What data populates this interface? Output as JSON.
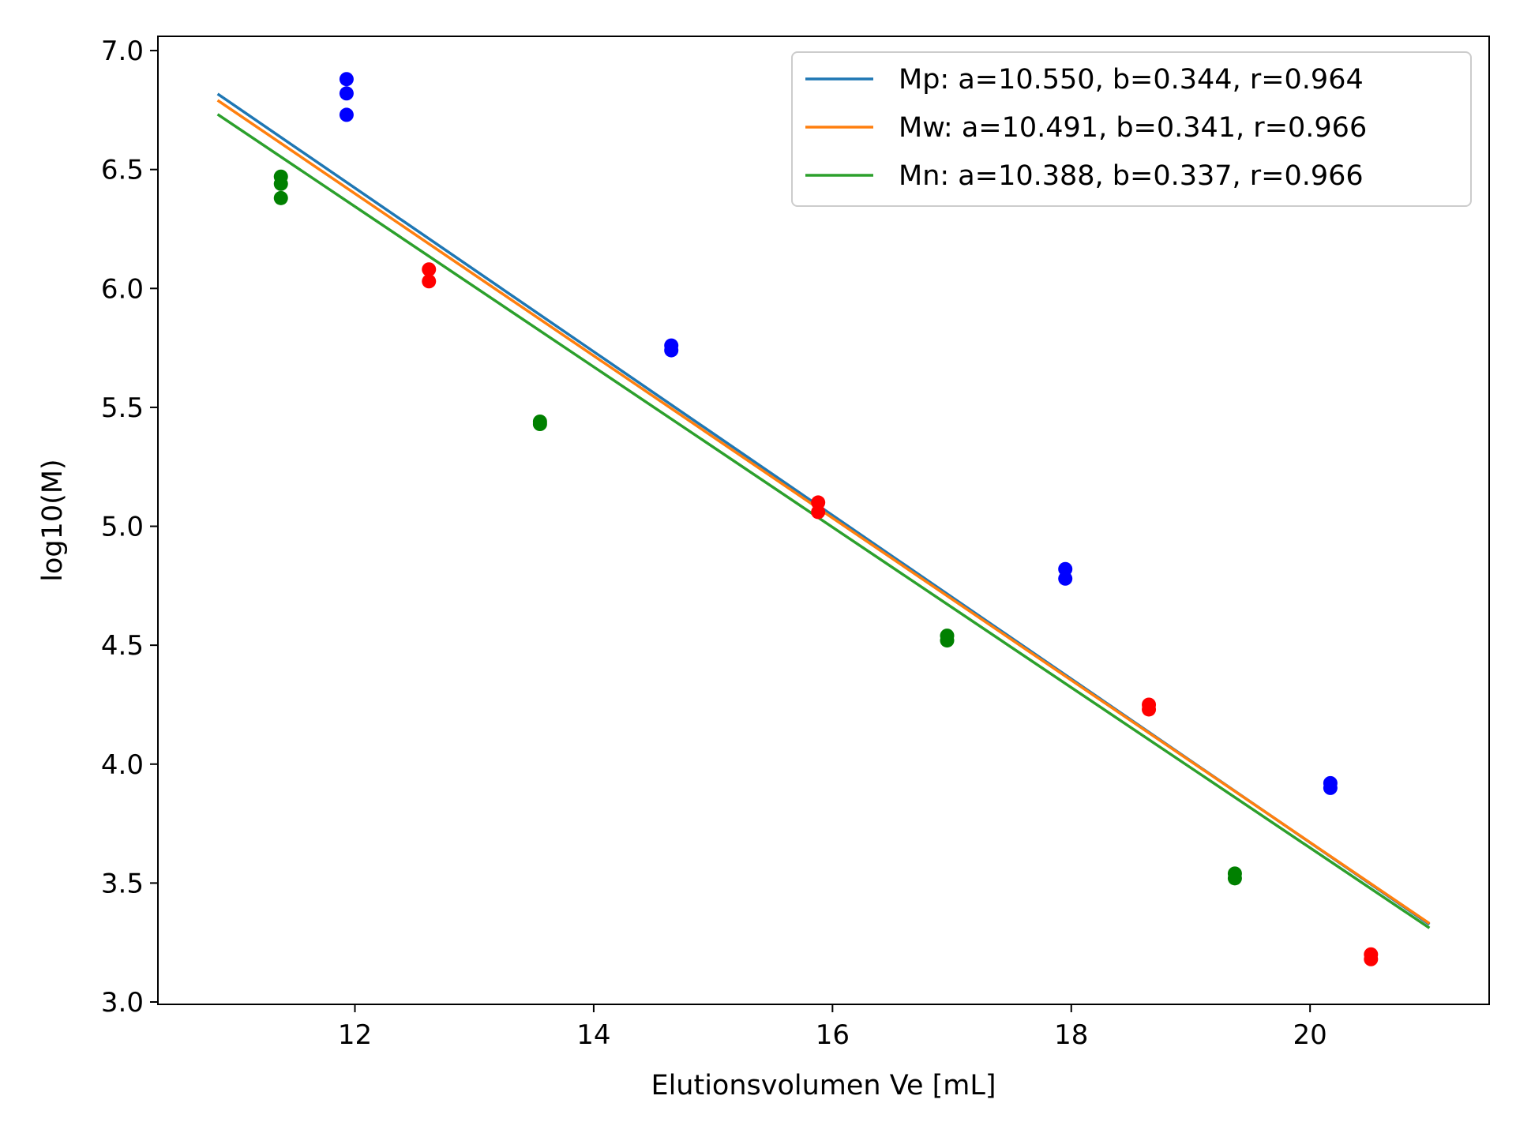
{
  "chart_data": {
    "type": "scatter",
    "title": "",
    "xlabel": "Elutionsvolumen Ve [mL]",
    "ylabel": "log10(M)",
    "xlim": [
      10.35,
      21.5
    ],
    "ylim": [
      2.99,
      7.06
    ],
    "xticks": [
      12,
      14,
      16,
      18,
      20
    ],
    "xtick_labels": [
      "12",
      "14",
      "16",
      "18",
      "20"
    ],
    "yticks": [
      3.0,
      3.5,
      4.0,
      4.5,
      5.0,
      5.5,
      6.0,
      6.5,
      7.0
    ],
    "ytick_labels": [
      "3.0",
      "3.5",
      "4.0",
      "4.5",
      "5.0",
      "5.5",
      "6.0",
      "6.5",
      "7.0"
    ],
    "grid": false,
    "legend_position": "top-right",
    "fit_lines": [
      {
        "name": "Mp: a=10.550, b=0.344, r=0.964",
        "color": "#1f77b4",
        "x": [
          10.85,
          21.0
        ],
        "y": [
          6.818,
          3.326
        ]
      },
      {
        "name": "Mw: a=10.491, b=0.341, r=0.966",
        "color": "#ff7f0e",
        "x": [
          10.85,
          21.0
        ],
        "y": [
          6.791,
          3.33
        ]
      },
      {
        "name": "Mn: a=10.388, b=0.337, r=0.966",
        "color": "#2ca02c",
        "x": [
          10.85,
          21.0
        ],
        "y": [
          6.732,
          3.311
        ]
      }
    ],
    "points": [
      {
        "color": "#0000ff",
        "x": [
          11.93,
          11.93,
          11.93,
          14.65,
          14.65,
          17.95,
          17.95,
          20.17,
          20.17
        ],
        "y": [
          6.88,
          6.82,
          6.73,
          5.76,
          5.74,
          4.82,
          4.78,
          3.92,
          3.9
        ]
      },
      {
        "color": "#ff0000",
        "x": [
          12.62,
          12.62,
          15.88,
          15.88,
          18.65,
          18.65,
          20.51,
          20.51
        ],
        "y": [
          6.08,
          6.03,
          5.1,
          5.06,
          4.25,
          4.23,
          3.2,
          3.18
        ]
      },
      {
        "color": "#008000",
        "x": [
          11.38,
          11.38,
          11.38,
          13.55,
          13.55,
          16.96,
          16.96,
          19.37,
          19.37
        ],
        "y": [
          6.47,
          6.44,
          6.38,
          5.44,
          5.43,
          4.54,
          4.52,
          3.54,
          3.52
        ]
      }
    ]
  }
}
